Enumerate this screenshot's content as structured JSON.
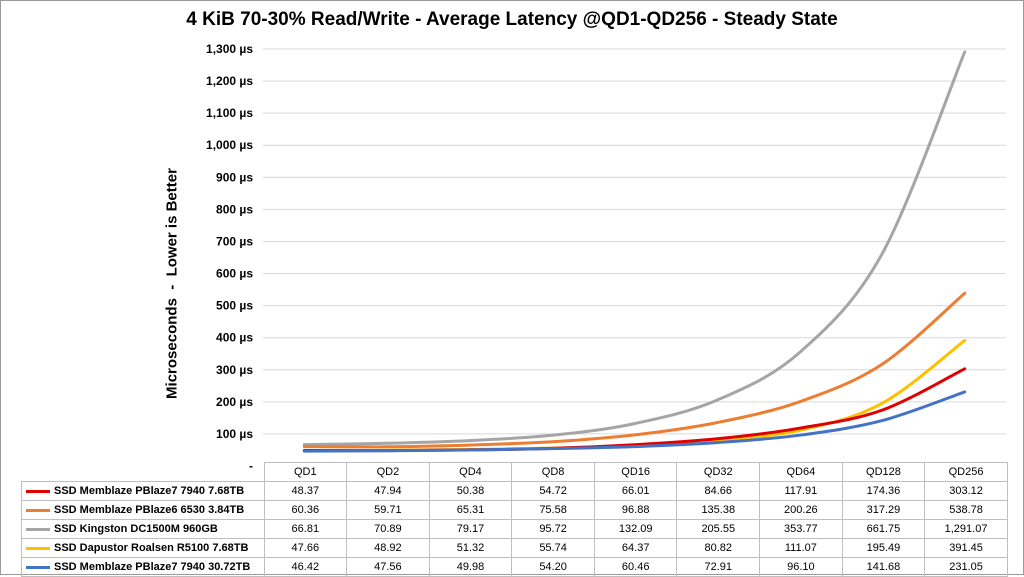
{
  "chart_data": {
    "type": "line",
    "title": "4 KiB 70-30% Read/Write - Average Latency @QD1-QD256 - Steady State",
    "ylabel": "Microseconds  -  Lower is Better",
    "xlabel": "",
    "ylim": [
      0,
      1300
    ],
    "yticks": [
      0,
      100,
      200,
      300,
      400,
      500,
      600,
      700,
      800,
      900,
      1000,
      1100,
      1200,
      1300
    ],
    "ytick_labels": [
      "-",
      "100 µs",
      "200 µs",
      "300 µs",
      "400 µs",
      "500 µs",
      "600 µs",
      "700 µs",
      "800 µs",
      "900 µs",
      "1,000 µs",
      "1,100 µs",
      "1,200 µs",
      "1,300 µs"
    ],
    "categories": [
      "QD1",
      "QD2",
      "QD4",
      "QD8",
      "QD16",
      "QD32",
      "QD64",
      "QD128",
      "QD256"
    ],
    "grid": true,
    "legend": "data-table-bottom",
    "series": [
      {
        "name": "SSD Memblaze PBlaze7 7940 7.68TB",
        "color": "#e00000",
        "values": [
          48.37,
          47.94,
          50.38,
          54.72,
          66.01,
          84.66,
          117.91,
          174.36,
          303.12
        ],
        "labels": [
          "48.37",
          "47.94",
          "50.38",
          "54.72",
          "66.01",
          "84.66",
          "117.91",
          "174.36",
          "303.12"
        ]
      },
      {
        "name": "SSD Memblaze PBlaze6 6530 3.84TB",
        "color": "#ed7d31",
        "values": [
          60.36,
          59.71,
          65.31,
          75.58,
          96.88,
          135.38,
          200.26,
          317.29,
          538.78
        ],
        "labels": [
          "60.36",
          "59.71",
          "65.31",
          "75.58",
          "96.88",
          "135.38",
          "200.26",
          "317.29",
          "538.78"
        ]
      },
      {
        "name": "SSD Kingston DC1500M 960GB",
        "color": "#a5a5a5",
        "values": [
          66.81,
          70.89,
          79.17,
          95.72,
          132.09,
          205.55,
          353.77,
          661.75,
          1291.07
        ],
        "labels": [
          "66.81",
          "70.89",
          "79.17",
          "95.72",
          "132.09",
          "205.55",
          "353.77",
          "661.75",
          "1,291.07"
        ]
      },
      {
        "name": "SSD Dapustor Roalsen R5100 7.68TB",
        "color": "#ffc000",
        "values": [
          47.66,
          48.92,
          51.32,
          55.74,
          64.37,
          80.82,
          111.07,
          195.49,
          391.45
        ],
        "labels": [
          "47.66",
          "48.92",
          "51.32",
          "55.74",
          "64.37",
          "80.82",
          "111.07",
          "195.49",
          "391.45"
        ]
      },
      {
        "name": "SSD Memblaze PBlaze7 7940 30.72TB",
        "color": "#4472c4",
        "values": [
          46.42,
          47.56,
          49.98,
          54.2,
          60.46,
          72.91,
          96.1,
          141.68,
          231.05
        ],
        "labels": [
          "46.42",
          "47.56",
          "49.98",
          "54.20",
          "60.46",
          "72.91",
          "96.10",
          "141.68",
          "231.05"
        ]
      }
    ]
  }
}
